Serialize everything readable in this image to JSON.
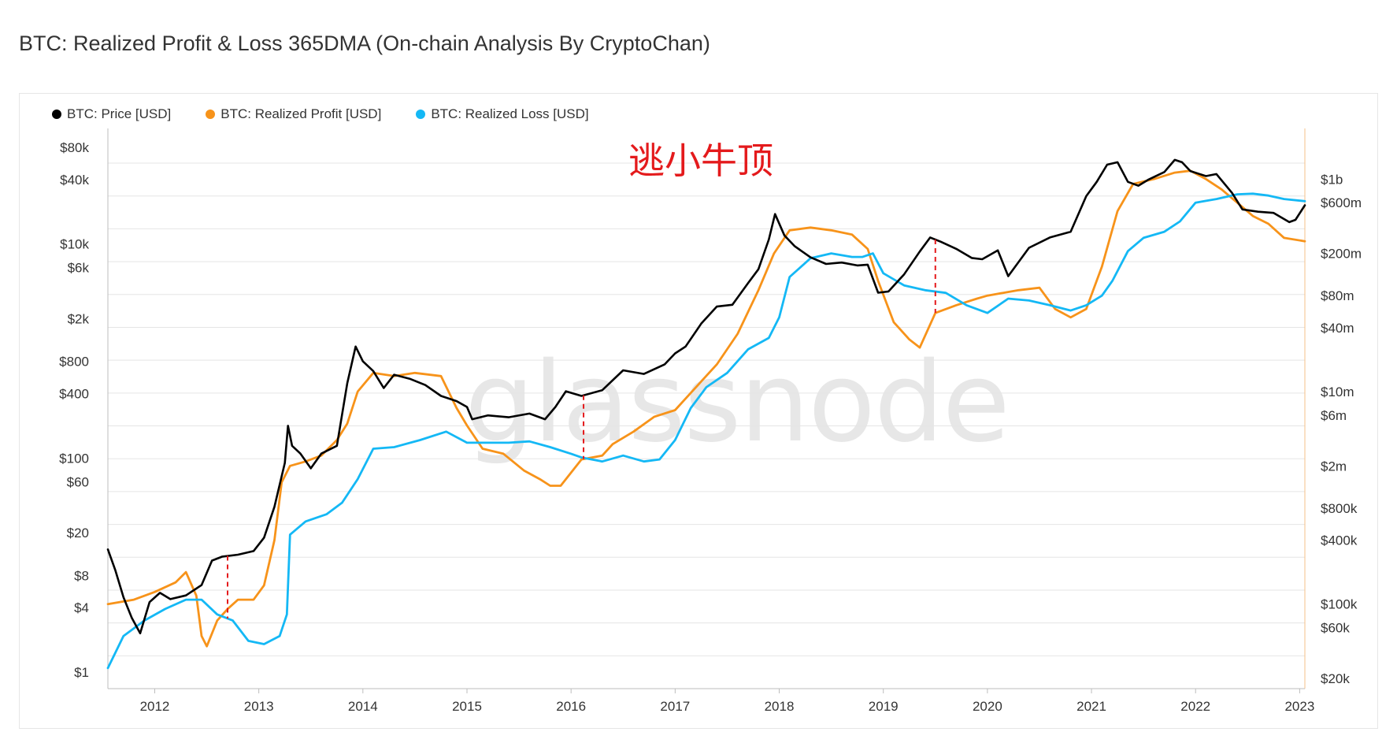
{
  "title": "BTC: Realized Profit & Loss 365DMA (On-chain Analysis By CryptoChan)",
  "annotation": "逃小牛顶",
  "watermark": "glassnode",
  "legend": [
    {
      "label": "BTC: Price [USD]",
      "color": "#000000"
    },
    {
      "label": "BTC: Realized Profit [USD]",
      "color": "#f7931a"
    },
    {
      "label": "BTC: Realized Loss [USD]",
      "color": "#14b8f5"
    }
  ],
  "chart_data": {
    "type": "line",
    "x_range": [
      2011.55,
      2023.05
    ],
    "x_ticks": [
      "2012",
      "2013",
      "2014",
      "2015",
      "2016",
      "2017",
      "2018",
      "2019",
      "2020",
      "2021",
      "2022",
      "2023"
    ],
    "x_tick_values": [
      2012,
      2013,
      2014,
      2015,
      2016,
      2017,
      2018,
      2019,
      2020,
      2021,
      2022,
      2023
    ],
    "y_left_scale": "log",
    "y_left_range": [
      0.7,
      120000
    ],
    "y_left_ticks": [
      {
        "label": "$80k",
        "value": 80000
      },
      {
        "label": "$40k",
        "value": 40000
      },
      {
        "label": "$10k",
        "value": 10000
      },
      {
        "label": "$6k",
        "value": 6000
      },
      {
        "label": "$2k",
        "value": 2000
      },
      {
        "label": "$800",
        "value": 800
      },
      {
        "label": "$400",
        "value": 400
      },
      {
        "label": "$100",
        "value": 100
      },
      {
        "label": "$60",
        "value": 60
      },
      {
        "label": "$20",
        "value": 20
      },
      {
        "label": "$8",
        "value": 8
      },
      {
        "label": "$4",
        "value": 4
      },
      {
        "label": "$1",
        "value": 1
      }
    ],
    "y_right_scale": "log",
    "y_right_range": [
      16000,
      3000000000
    ],
    "y_right_ticks": [
      {
        "label": "$1b",
        "value": 1000000000
      },
      {
        "label": "$600m",
        "value": 600000000
      },
      {
        "label": "$200m",
        "value": 200000000
      },
      {
        "label": "$80m",
        "value": 80000000
      },
      {
        "label": "$40m",
        "value": 40000000
      },
      {
        "label": "$10m",
        "value": 10000000
      },
      {
        "label": "$6m",
        "value": 6000000
      },
      {
        "label": "$2m",
        "value": 2000000
      },
      {
        "label": "$800k",
        "value": 800000
      },
      {
        "label": "$400k",
        "value": 400000
      },
      {
        "label": "$100k",
        "value": 100000
      },
      {
        "label": "$60k",
        "value": 60000
      },
      {
        "label": "$20k",
        "value": 20000
      }
    ],
    "grid": true,
    "legend_position": "top-left",
    "series": [
      {
        "name": "BTC: Price [USD]",
        "axis": "left",
        "color": "#000000",
        "x": [
          2011.55,
          2011.62,
          2011.7,
          2011.78,
          2011.86,
          2011.95,
          2012.05,
          2012.15,
          2012.3,
          2012.45,
          2012.55,
          2012.65,
          2012.8,
          2012.95,
          2013.05,
          2013.15,
          2013.25,
          2013.28,
          2013.32,
          2013.4,
          2013.5,
          2013.6,
          2013.75,
          2013.85,
          2013.93,
          2014.0,
          2014.1,
          2014.2,
          2014.3,
          2014.45,
          2014.6,
          2014.75,
          2014.9,
          2015.0,
          2015.05,
          2015.2,
          2015.4,
          2015.6,
          2015.75,
          2015.85,
          2015.95,
          2016.1,
          2016.3,
          2016.5,
          2016.7,
          2016.9,
          2017.0,
          2017.1,
          2017.25,
          2017.4,
          2017.55,
          2017.7,
          2017.8,
          2017.9,
          2017.96,
          2018.05,
          2018.15,
          2018.3,
          2018.45,
          2018.6,
          2018.75,
          2018.85,
          2018.95,
          2019.05,
          2019.2,
          2019.35,
          2019.45,
          2019.55,
          2019.7,
          2019.85,
          2019.95,
          2020.1,
          2020.2,
          2020.4,
          2020.6,
          2020.8,
          2020.95,
          2021.05,
          2021.15,
          2021.25,
          2021.35,
          2021.45,
          2021.55,
          2021.7,
          2021.8,
          2021.87,
          2021.95,
          2022.1,
          2022.2,
          2022.35,
          2022.45,
          2022.6,
          2022.75,
          2022.9,
          2022.96,
          2023.05
        ],
        "values": [
          14,
          9,
          5,
          3.2,
          2.3,
          4.5,
          5.5,
          4.8,
          5.2,
          6.5,
          11,
          12,
          12.5,
          13.5,
          18,
          35,
          90,
          200,
          130,
          110,
          80,
          110,
          130,
          500,
          1100,
          800,
          650,
          450,
          600,
          550,
          480,
          380,
          340,
          300,
          230,
          250,
          240,
          260,
          230,
          300,
          420,
          380,
          430,
          660,
          610,
          750,
          950,
          1100,
          1800,
          2600,
          2700,
          4300,
          5800,
          11000,
          19000,
          12000,
          9500,
          7500,
          6500,
          6700,
          6300,
          6400,
          3500,
          3600,
          5200,
          8500,
          11500,
          10500,
          9000,
          7400,
          7200,
          8700,
          5000,
          9200,
          11500,
          13000,
          28000,
          38000,
          55000,
          58000,
          38000,
          35000,
          40000,
          47000,
          61000,
          58000,
          48000,
          43000,
          45000,
          30000,
          21000,
          20000,
          19500,
          16000,
          16800,
          23000
        ]
      },
      {
        "name": "BTC: Realized Profit [USD]",
        "axis": "right",
        "color": "#f7931a",
        "x": [
          2011.55,
          2011.8,
          2012.0,
          2012.2,
          2012.3,
          2012.4,
          2012.45,
          2012.5,
          2012.6,
          2012.7,
          2012.8,
          2012.95,
          2013.05,
          2013.15,
          2013.22,
          2013.3,
          2013.45,
          2013.6,
          2013.75,
          2013.85,
          2013.95,
          2014.1,
          2014.3,
          2014.5,
          2014.75,
          2014.9,
          2015.0,
          2015.15,
          2015.35,
          2015.55,
          2015.7,
          2015.8,
          2015.9,
          2016.1,
          2016.3,
          2016.4,
          2016.6,
          2016.8,
          2017.0,
          2017.2,
          2017.4,
          2017.6,
          2017.8,
          2017.95,
          2018.1,
          2018.3,
          2018.5,
          2018.7,
          2018.85,
          2018.95,
          2019.1,
          2019.25,
          2019.35,
          2019.5,
          2019.7,
          2019.9,
          2020.0,
          2020.15,
          2020.3,
          2020.5,
          2020.65,
          2020.8,
          2020.95,
          2021.1,
          2021.25,
          2021.4,
          2021.6,
          2021.8,
          2021.95,
          2022.1,
          2022.25,
          2022.4,
          2022.55,
          2022.7,
          2022.85,
          2023.05
        ],
        "values": [
          100000,
          110000,
          130000,
          160000,
          200000,
          120000,
          50000,
          40000,
          70000,
          90000,
          110000,
          110000,
          150000,
          400000,
          1400000,
          2000000,
          2200000,
          2500000,
          3500000,
          5000000,
          10000000,
          15000000,
          14000000,
          15000000,
          14000000,
          7000000,
          4800000,
          2900000,
          2600000,
          1800000,
          1500000,
          1300000,
          1300000,
          2300000,
          2500000,
          3200000,
          4200000,
          5800000,
          6700000,
          11000000,
          18000000,
          35000000,
          90000000,
          200000000,
          330000000,
          350000000,
          330000000,
          300000000,
          220000000,
          110000000,
          45000000,
          31000000,
          26000000,
          55000000,
          65000000,
          75000000,
          80000000,
          85000000,
          90000000,
          95000000,
          60000000,
          50000000,
          60000000,
          150000000,
          500000000,
          900000000,
          1000000000,
          1150000000,
          1200000000,
          1000000000,
          800000000,
          600000000,
          450000000,
          380000000,
          280000000,
          260000000
        ]
      },
      {
        "name": "BTC: Realized Loss [USD]",
        "axis": "right",
        "color": "#14b8f5",
        "x": [
          2011.55,
          2011.7,
          2011.9,
          2012.1,
          2012.3,
          2012.45,
          2012.6,
          2012.75,
          2012.9,
          2013.05,
          2013.2,
          2013.27,
          2013.3,
          2013.45,
          2013.65,
          2013.8,
          2013.95,
          2014.1,
          2014.3,
          2014.55,
          2014.8,
          2015.0,
          2015.2,
          2015.4,
          2015.6,
          2015.8,
          2016.0,
          2016.1,
          2016.3,
          2016.5,
          2016.7,
          2016.85,
          2017.0,
          2017.15,
          2017.3,
          2017.5,
          2017.7,
          2017.9,
          2018.0,
          2018.1,
          2018.3,
          2018.5,
          2018.7,
          2018.8,
          2018.9,
          2019.0,
          2019.2,
          2019.4,
          2019.6,
          2019.8,
          2020.0,
          2020.2,
          2020.4,
          2020.6,
          2020.8,
          2020.95,
          2021.1,
          2021.2,
          2021.35,
          2021.5,
          2021.7,
          2021.85,
          2022.0,
          2022.2,
          2022.4,
          2022.55,
          2022.7,
          2022.85,
          2023.05
        ],
        "values": [
          25000,
          50000,
          70000,
          90000,
          110000,
          110000,
          80000,
          70000,
          45000,
          42000,
          50000,
          80000,
          450000,
          600000,
          700000,
          900000,
          1500000,
          2900000,
          3000000,
          3500000,
          4200000,
          3300000,
          3300000,
          3300000,
          3400000,
          3000000,
          2600000,
          2400000,
          2200000,
          2500000,
          2200000,
          2300000,
          3500000,
          7000000,
          11000000,
          15000000,
          25000000,
          32000000,
          50000000,
          120000000,
          180000000,
          200000000,
          185000000,
          185000000,
          200000000,
          130000000,
          100000000,
          90000000,
          85000000,
          65000000,
          55000000,
          75000000,
          72000000,
          65000000,
          58000000,
          65000000,
          80000000,
          110000000,
          210000000,
          280000000,
          320000000,
          400000000,
          600000000,
          650000000,
          720000000,
          730000000,
          700000000,
          650000000,
          620000000
        ]
      }
    ],
    "markers": [
      {
        "x": 2012.7,
        "style": "red-dashed"
      },
      {
        "x": 2016.12,
        "style": "red-dashed"
      },
      {
        "x": 2019.5,
        "style": "red-dashed"
      }
    ]
  }
}
